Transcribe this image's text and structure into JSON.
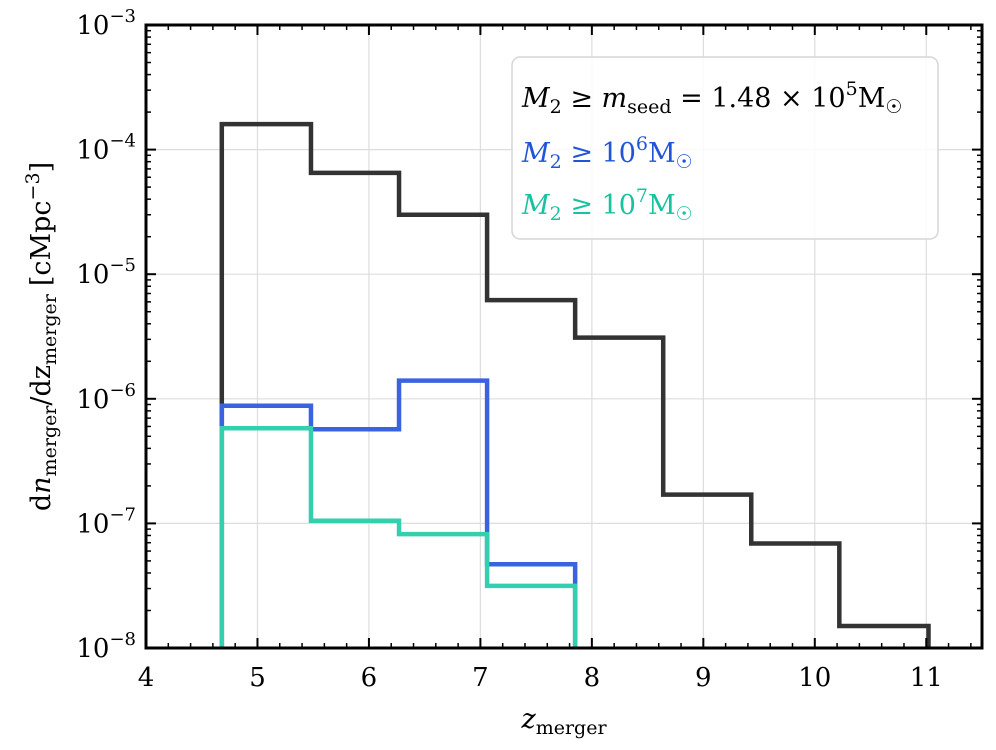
{
  "chart_data": {
    "type": "step-histogram",
    "title": "",
    "xlabel": "z_merger",
    "ylabel": "dn_merger/dz_merger [cMpc^-3]",
    "xlim": [
      4,
      11.5
    ],
    "ylim": [
      1e-08,
      0.001
    ],
    "yscale": "log",
    "grid": true,
    "x_ticks": [
      4,
      5,
      6,
      7,
      8,
      9,
      10,
      11
    ],
    "y_ticks": [
      1e-08,
      1e-07,
      1e-06,
      1e-05,
      0.0001,
      0.001
    ],
    "y_tick_labels": [
      {
        "base": "10",
        "exp": "−8"
      },
      {
        "base": "10",
        "exp": "−7"
      },
      {
        "base": "10",
        "exp": "−6"
      },
      {
        "base": "10",
        "exp": "−5"
      },
      {
        "base": "10",
        "exp": "−4"
      },
      {
        "base": "10",
        "exp": "−3"
      }
    ],
    "bin_edges": [
      4.68,
      5.48,
      6.27,
      7.06,
      7.85,
      8.64,
      9.43,
      10.22,
      11.02
    ],
    "legend_position": "upper-right",
    "series": [
      {
        "name": "M2 ≥ m_seed = 1.48×10^5 M☉",
        "color": "#333333",
        "values": [
          0.00016,
          6.5e-05,
          3e-05,
          6.2e-06,
          3.1e-06,
          1.7e-07,
          6.9e-08,
          1.5e-08
        ]
      },
      {
        "name": "M2 ≥ 10^6 M☉",
        "color": "#3a63e0",
        "values": [
          8.8e-07,
          5.7e-07,
          1.4e-06,
          4.7e-08
        ]
      },
      {
        "name": "M2 ≥ 10^7 M☉",
        "color": "#33cfae",
        "values": [
          5.8e-07,
          1.05e-07,
          8.2e-08,
          3.15e-08
        ]
      }
    ],
    "legend": [
      {
        "m": "M",
        "sub": "2",
        "ge": " ≥ ",
        "rhs_m": "m",
        "rhs_sub": "seed",
        "eq": " = 1.48 × 10",
        "exp": "5",
        "unit": "M",
        "sun": "☉",
        "color": "#000000"
      },
      {
        "m": "M",
        "sub": "2",
        "ge": " ≥ ",
        "eq": "10",
        "exp": "6",
        "unit": "M",
        "sun": "☉",
        "color": "#1f55d6"
      },
      {
        "m": "M",
        "sub": "2",
        "ge": " ≥ ",
        "eq": "10",
        "exp": "7",
        "unit": "M",
        "sun": "☉",
        "color": "#17c2a0"
      }
    ],
    "xlabel_parts": {
      "var": "z",
      "sub": "merger"
    },
    "ylabel_parts": {
      "d1": "d",
      "n": "n",
      "n_sub": "merger",
      "slash": "/dz",
      "z_sub": "merger",
      "unit_open": "[cMpc",
      "unit_exp": "−3",
      "unit_close": "]"
    }
  }
}
